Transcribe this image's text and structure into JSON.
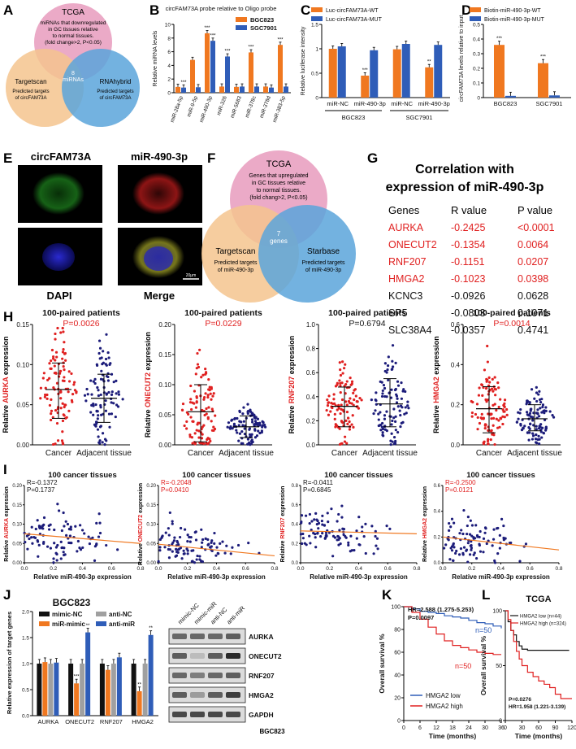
{
  "colors": {
    "orange": "#f07820",
    "blue": "#2f5db8",
    "pink": "#e79bbd",
    "peach": "#f4c48e",
    "sky": "#5aa5da",
    "red": "#e02020",
    "grey": "#a0a0a0",
    "navy": "#1c1c7a"
  },
  "panels": {
    "A": "A",
    "B": "B",
    "C": "C",
    "D": "D",
    "E": "E",
    "F": "F",
    "G": "G",
    "H": "H",
    "I": "I",
    "J": "J",
    "K": "K",
    "L": "L"
  },
  "venn_a": {
    "top_title": "TCGA",
    "top_desc": [
      "miRNAs that downregulated",
      "in GC tissues relative",
      "to normal tissues.",
      "(fold change>2, P<0.05)"
    ],
    "left_title": "Targetscan",
    "left_desc": [
      "Predicted targets",
      "of circFAM73A"
    ],
    "right_title": "RNAhybrid",
    "right_desc": [
      "Predicted targets",
      "of circFAM73A"
    ],
    "center": [
      "8",
      "miRNAs"
    ]
  },
  "venn_f": {
    "top_title": "TCGA",
    "top_desc": [
      "Genes that upregulated",
      "in GC tissues relative",
      "to normal tissues.",
      "(fold chang>2, P<0.05)"
    ],
    "left_title": "Targetscan",
    "left_desc": [
      "Predicted targets",
      "of miR-490-3p"
    ],
    "right_title": "Starbase",
    "right_desc": [
      "Predicted targets",
      "of miR-490-3p"
    ],
    "center": [
      "7",
      "genes"
    ]
  },
  "micro": {
    "label_green": "circFAM73A",
    "label_red": "miR-490-3p",
    "label_dapi": "DAPI",
    "label_merge": "Merge",
    "scale": "20μm"
  },
  "table_g": {
    "title1": "Correlation with",
    "title2": "expression of miR-490-3p",
    "headers": [
      "Genes",
      "R value",
      "P value"
    ],
    "rows": [
      {
        "gene": "AURKA",
        "r": "-0.2425",
        "p": "<0.0001",
        "sig": true
      },
      {
        "gene": "ONECUT2",
        "r": "-0.1354",
        "p": "0.0064",
        "sig": true
      },
      {
        "gene": "RNF207",
        "r": "-0.1151",
        "p": "0.0207",
        "sig": true
      },
      {
        "gene": "HMGA2",
        "r": "-0.1023",
        "p": "0.0398",
        "sig": true
      },
      {
        "gene": "KCNC3",
        "r": "-0.0926",
        "p": "0.0628",
        "sig": false
      },
      {
        "gene": "SP5",
        "r": "-0.0803",
        "p": "0.1071",
        "sig": false
      },
      {
        "gene": "SLC38A4",
        "r": "-0.0357",
        "p": "0.4741",
        "sig": false
      }
    ]
  },
  "chart_data": [
    {
      "id": "B",
      "type": "bar",
      "title": "circFAM73A probe relative to Oligo probe",
      "ylabel": "Relative miRNA levels",
      "ylim": [
        0,
        10
      ],
      "yticks": [
        0,
        2,
        4,
        6,
        8,
        10
      ],
      "categories": [
        "miR-28a-5p",
        "miR-9-5p",
        "miR-490-3p",
        "miR-326",
        "miR-5683",
        "miR-378c",
        "miR-378d",
        "miR-383-5p"
      ],
      "series": [
        {
          "name": "BGC823",
          "values": [
            0.85,
            4.8,
            8.7,
            0.9,
            0.85,
            5.9,
            0.9,
            7.0
          ]
        },
        {
          "name": "SGC7901",
          "values": [
            0.75,
            0.8,
            7.6,
            5.3,
            0.9,
            0.9,
            0.75,
            0.9
          ]
        }
      ],
      "sig": [
        [
          "",
          "***"
        ],
        [
          "",
          ""
        ],
        [
          "***",
          "***"
        ],
        [
          "",
          "***"
        ],
        [
          "",
          ""
        ],
        [
          "***",
          ""
        ],
        [
          "",
          ""
        ],
        [
          "***",
          ""
        ]
      ]
    },
    {
      "id": "C",
      "type": "bar",
      "ylabel": "Relative luciferase intensity",
      "ylim": [
        0,
        1.5
      ],
      "yticks": [
        0.0,
        0.5,
        1.0,
        1.5
      ],
      "categories": [
        "miR-NC",
        "miR-490-3p",
        "miR-NC",
        "miR-490-3p"
      ],
      "groups": [
        "BGC823",
        "SGC7901"
      ],
      "series": [
        {
          "name": "Luc-circFAM73A-WT",
          "values": [
            1.0,
            0.45,
            0.99,
            0.62
          ]
        },
        {
          "name": "Luc-circFAM73A-MUT",
          "values": [
            1.05,
            0.97,
            1.1,
            1.08
          ]
        }
      ],
      "sig": [
        [
          "",
          ""
        ],
        [
          "***",
          ""
        ],
        [
          "",
          ""
        ],
        [
          "**",
          ""
        ]
      ]
    },
    {
      "id": "D",
      "type": "bar",
      "ylabel": "circFAM73A levels relative to input",
      "ylim": [
        0,
        0.5
      ],
      "yticks": [
        0.0,
        0.1,
        0.2,
        0.3,
        0.4,
        0.5
      ],
      "categories": [
        "BGC823",
        "SGC7901"
      ],
      "series": [
        {
          "name": "Biotin-miR-490-3p-WT",
          "values": [
            0.36,
            0.235
          ]
        },
        {
          "name": "Biotin-miR-490-3p-MUT",
          "values": [
            0.012,
            0.015
          ]
        }
      ],
      "sig": [
        [
          "***",
          ""
        ],
        [
          "***",
          ""
        ]
      ]
    },
    {
      "id": "H",
      "type": "scatter",
      "title": "100-paired patients",
      "plots": [
        {
          "gene": "AURKA",
          "p": "P=0.0026",
          "sig": true,
          "ylim": [
            0,
            0.15
          ],
          "yticks": [
            "0.00",
            "0.05",
            "0.10",
            "0.15"
          ],
          "cancer": [
            0.069,
            0.033,
            0.102
          ],
          "adjacent": [
            0.058,
            0.028,
            0.088
          ],
          "categories": [
            "Cancer",
            "Adjacent tissue"
          ]
        },
        {
          "gene": "ONECUT2",
          "p": "P=0.0229",
          "sig": true,
          "ylim": [
            0,
            0.2
          ],
          "yticks": [
            "0.00",
            "0.05",
            "0.10",
            "0.15",
            "0.20"
          ],
          "cancer": [
            0.055,
            0.005,
            0.1
          ],
          "adjacent": [
            0.03,
            0.012,
            0.048
          ],
          "categories": [
            "Cancer",
            "Adjacent tissue"
          ]
        },
        {
          "gene": "RNF207",
          "p": "P=0.6794",
          "sig": false,
          "ylim": [
            0,
            1.0
          ],
          "yticks": [
            "0.0",
            "0.2",
            "0.4",
            "0.6",
            "0.8",
            "1.0"
          ],
          "cancer": [
            0.32,
            0.15,
            0.48
          ],
          "adjacent": [
            0.34,
            0.15,
            0.55
          ],
          "categories": [
            "Cancer",
            "Adjacent tissue"
          ]
        },
        {
          "gene": "HMGA2",
          "p": "P=0.0014",
          "sig": true,
          "ylim": [
            0,
            0.6
          ],
          "yticks": [
            "0.0",
            "0.2",
            "0.4",
            "0.6"
          ],
          "cancer": [
            0.18,
            0.06,
            0.29
          ],
          "adjacent": [
            0.13,
            0.07,
            0.2
          ],
          "categories": [
            "Cancer",
            "Adjacent tissue"
          ]
        }
      ],
      "ylabel_prefix": "Relative",
      "ylabel_suffix": "expression"
    },
    {
      "id": "I",
      "type": "scatter",
      "title": "100 cancer tissues",
      "xlabel": "Relative miR-490-3p expression",
      "xlim": [
        0,
        0.8
      ],
      "xticks": [
        "0.0",
        "0.2",
        "0.4",
        "0.6",
        "0.8"
      ],
      "plots": [
        {
          "gene": "AURKA",
          "r": "R=-0.1372",
          "p": "P=0.1737",
          "sig": false,
          "ylim": [
            0,
            0.2
          ],
          "yticks": [
            "0.00",
            "0.05",
            "0.10",
            "0.15",
            "0.20"
          ],
          "line": [
            0.075,
            0.05
          ]
        },
        {
          "gene": "ONECUT2",
          "r": "R=-0.2048",
          "p": "P=0.0410",
          "sig": true,
          "ylim": [
            0,
            0.2
          ],
          "yticks": [
            "0.00",
            "0.05",
            "0.10",
            "0.15",
            "0.20"
          ],
          "line": [
            0.048,
            0.018
          ]
        },
        {
          "gene": "RNF207",
          "r": "R=-0.0411",
          "p": "P=0.6845",
          "sig": false,
          "ylim": [
            0,
            0.8
          ],
          "yticks": [
            "0.0",
            "0.2",
            "0.4",
            "0.6",
            "0.8"
          ],
          "line": [
            0.33,
            0.3
          ]
        },
        {
          "gene": "HMGA2",
          "r": "R=-0.2500",
          "p": "P=0.0121",
          "sig": true,
          "ylim": [
            0,
            0.6
          ],
          "yticks": [
            "0.0",
            "0.2",
            "0.4",
            "0.6"
          ],
          "line": [
            0.2,
            0.1
          ]
        }
      ]
    },
    {
      "id": "J",
      "type": "bar",
      "title": "BGC823",
      "ylabel": "Relative expression of target genes",
      "ylim": [
        0,
        2.0
      ],
      "yticks": [
        "0.0",
        "0.5",
        "1.0",
        "1.5",
        "2.0"
      ],
      "categories": [
        "AURKA",
        "ONECUT2",
        "RNF207",
        "HMGA2"
      ],
      "series": [
        {
          "name": "mimic-NC",
          "values": [
            1.0,
            1.0,
            1.0,
            1.0
          ]
        },
        {
          "name": "miR-mimic",
          "values": [
            1.03,
            0.62,
            0.88,
            0.47
          ]
        },
        {
          "name": "anti-NC",
          "values": [
            1.0,
            1.0,
            1.0,
            1.0
          ]
        },
        {
          "name": "anti-miR",
          "values": [
            1.02,
            1.6,
            1.12,
            1.55
          ]
        }
      ],
      "sig": [
        [
          "",
          "",
          "",
          ""
        ],
        [
          "",
          "***",
          "",
          "**"
        ],
        [
          "",
          "",
          "",
          ""
        ],
        [
          "",
          "**",
          "",
          "**"
        ]
      ]
    },
    {
      "id": "K",
      "type": "line",
      "ylabel": "Overall survival %",
      "xlabel": "Time (months)",
      "xlim": [
        0,
        36
      ],
      "xticks": [
        0,
        6,
        12,
        18,
        24,
        30,
        36
      ],
      "ylim": [
        0,
        100
      ],
      "yticks": [
        0,
        20,
        40,
        60,
        80,
        100
      ],
      "annot": [
        "HR=2.588 (1.275-5.253)",
        "P=0.0097"
      ],
      "n_low": "n=50",
      "n_high": "n=50",
      "series": [
        {
          "name": "HMGA2 low",
          "x": [
            0,
            3,
            6,
            9,
            12,
            15,
            18,
            21,
            24,
            27,
            30,
            33,
            36
          ],
          "y": [
            100,
            98,
            96,
            95,
            94,
            92,
            91,
            90,
            88,
            86,
            85,
            83,
            81
          ]
        },
        {
          "name": "HMGA2 high",
          "x": [
            0,
            3,
            6,
            9,
            12,
            15,
            18,
            21,
            24,
            27,
            30,
            33,
            36
          ],
          "y": [
            100,
            95,
            89,
            82,
            76,
            70,
            66,
            64,
            62,
            60,
            59,
            58,
            58
          ]
        }
      ]
    },
    {
      "id": "L",
      "type": "line",
      "title": "TCGA",
      "ylabel": "Overall survival %",
      "xlabel": "Time (months)",
      "xlim": [
        0,
        120
      ],
      "xticks": [
        0,
        30,
        60,
        90,
        120
      ],
      "ylim": [
        0,
        100
      ],
      "yticks": [
        0,
        50,
        100
      ],
      "annot": [
        "P=0.0276",
        "HR=1.958 (1.221-3.139)"
      ],
      "series": [
        {
          "name": "HMGA2 low (n=44)",
          "x": [
            0,
            5,
            10,
            15,
            20,
            25,
            30,
            40,
            60,
            80,
            100,
            115
          ],
          "y": [
            100,
            90,
            82,
            78,
            72,
            68,
            65,
            64,
            64,
            64,
            64,
            64
          ]
        },
        {
          "name": "HMGA2 high (n=324)",
          "x": [
            0,
            5,
            10,
            15,
            20,
            25,
            30,
            40,
            50,
            60,
            70,
            80,
            90,
            100,
            110,
            120
          ],
          "y": [
            100,
            92,
            82,
            72,
            63,
            56,
            50,
            44,
            40,
            36,
            33,
            30,
            24,
            20,
            20,
            20
          ]
        }
      ]
    }
  ],
  "blot": {
    "lanes": [
      "mimic-NC",
      "mimic-miR",
      "anti-NC",
      "anti-miR"
    ],
    "proteins": [
      "AURKA",
      "ONECUT2",
      "RNF207",
      "HMGA2",
      "GAPDH"
    ],
    "caption": "BGC823"
  }
}
